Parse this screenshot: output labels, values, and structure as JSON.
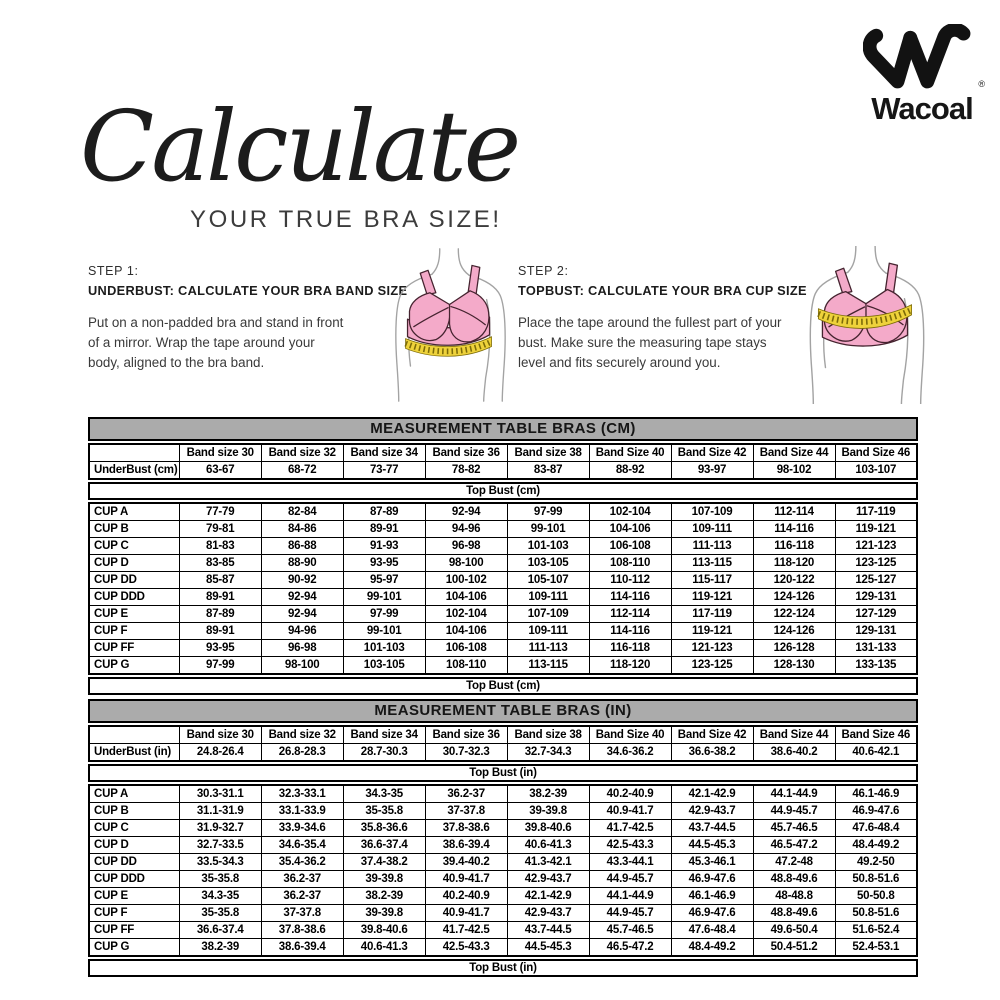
{
  "brand": {
    "wordmark": "Wacoal",
    "registered": "®"
  },
  "hero": {
    "script_title": "Calculate",
    "subtitle": "YOUR TRUE BRA SIZE!"
  },
  "steps": [
    {
      "label": "STEP 1:",
      "heading": "UNDERBUST: CALCULATE YOUR BRA BAND SIZE",
      "body": "Put on a non-padded bra and stand in front\nof a mirror. Wrap the tape around your\nbody, aligned to the bra band."
    },
    {
      "label": "STEP 2:",
      "heading": "TOPBUST: CALCULATE YOUR BRA CUP SIZE",
      "body": "Place the tape around the fullest part of your\nbust. Make sure the measuring tape stays\nlevel and fits securely around you."
    }
  ],
  "tables": [
    {
      "title": "MEASUREMENT TABLE BRAS (CM)",
      "columns": [
        "Band size 30",
        "Band size 32",
        "Band size 34",
        "Band size 36",
        "Band size 38",
        "Band Size 40",
        "Band Size 42",
        "Band Size 44",
        "Band Size 46"
      ],
      "underbust_label": "UnderBust (cm)",
      "underbust": [
        "63-67",
        "68-72",
        "73-77",
        "78-82",
        "83-87",
        "88-92",
        "93-97",
        "98-102",
        "103-107"
      ],
      "topbust_label": "Top Bust (cm)",
      "rows": [
        {
          "label": "CUP A",
          "values": [
            "77-79",
            "82-84",
            "87-89",
            "92-94",
            "97-99",
            "102-104",
            "107-109",
            "112-114",
            "117-119"
          ]
        },
        {
          "label": "CUP B",
          "values": [
            "79-81",
            "84-86",
            "89-91",
            "94-96",
            "99-101",
            "104-106",
            "109-111",
            "114-116",
            "119-121"
          ]
        },
        {
          "label": "CUP C",
          "values": [
            "81-83",
            "86-88",
            "91-93",
            "96-98",
            "101-103",
            "106-108",
            "111-113",
            "116-118",
            "121-123"
          ]
        },
        {
          "label": "CUP D",
          "values": [
            "83-85",
            "88-90",
            "93-95",
            "98-100",
            "103-105",
            "108-110",
            "113-115",
            "118-120",
            "123-125"
          ]
        },
        {
          "label": "CUP DD",
          "values": [
            "85-87",
            "90-92",
            "95-97",
            "100-102",
            "105-107",
            "110-112",
            "115-117",
            "120-122",
            "125-127"
          ]
        },
        {
          "label": "CUP DDD",
          "values": [
            "89-91",
            "92-94",
            "99-101",
            "104-106",
            "109-111",
            "114-116",
            "119-121",
            "124-126",
            "129-131"
          ]
        },
        {
          "label": "CUP E",
          "values": [
            "87-89",
            "92-94",
            "97-99",
            "102-104",
            "107-109",
            "112-114",
            "117-119",
            "122-124",
            "127-129"
          ]
        },
        {
          "label": "CUP F",
          "values": [
            "89-91",
            "94-96",
            "99-101",
            "104-106",
            "109-111",
            "114-116",
            "119-121",
            "124-126",
            "129-131"
          ]
        },
        {
          "label": "CUP FF",
          "values": [
            "93-95",
            "96-98",
            "101-103",
            "106-108",
            "111-113",
            "116-118",
            "121-123",
            "126-128",
            "131-133"
          ]
        },
        {
          "label": "CUP G",
          "values": [
            "97-99",
            "98-100",
            "103-105",
            "108-110",
            "113-115",
            "118-120",
            "123-125",
            "128-130",
            "133-135"
          ]
        }
      ],
      "footer_label": "Top Bust (cm)"
    },
    {
      "title": "MEASUREMENT TABLE BRAS (IN)",
      "columns": [
        "Band size 30",
        "Band size 32",
        "Band size 34",
        "Band size 36",
        "Band size 38",
        "Band Size 40",
        "Band Size 42",
        "Band Size 44",
        "Band Size 46"
      ],
      "underbust_label": "UnderBust (in)",
      "underbust": [
        "24.8-26.4",
        "26.8-28.3",
        "28.7-30.3",
        "30.7-32.3",
        "32.7-34.3",
        "34.6-36.2",
        "36.6-38.2",
        "38.6-40.2",
        "40.6-42.1"
      ],
      "topbust_label": "Top Bust (in)",
      "rows": [
        {
          "label": "CUP A",
          "values": [
            "30.3-31.1",
            "32.3-33.1",
            "34.3-35",
            "36.2-37",
            "38.2-39",
            "40.2-40.9",
            "42.1-42.9",
            "44.1-44.9",
            "46.1-46.9"
          ]
        },
        {
          "label": "CUP B",
          "values": [
            "31.1-31.9",
            "33.1-33.9",
            "35-35.8",
            "37-37.8",
            "39-39.8",
            "40.9-41.7",
            "42.9-43.7",
            "44.9-45.7",
            "46.9-47.6"
          ]
        },
        {
          "label": "CUP C",
          "values": [
            "31.9-32.7",
            "33.9-34.6",
            "35.8-36.6",
            "37.8-38.6",
            "39.8-40.6",
            "41.7-42.5",
            "43.7-44.5",
            "45.7-46.5",
            "47.6-48.4"
          ]
        },
        {
          "label": "CUP D",
          "values": [
            "32.7-33.5",
            "34.6-35.4",
            "36.6-37.4",
            "38.6-39.4",
            "40.6-41.3",
            "42.5-43.3",
            "44.5-45.3",
            "46.5-47.2",
            "48.4-49.2"
          ]
        },
        {
          "label": "CUP DD",
          "values": [
            "33.5-34.3",
            "35.4-36.2",
            "37.4-38.2",
            "39.4-40.2",
            "41.3-42.1",
            "43.3-44.1",
            "45.3-46.1",
            "47.2-48",
            "49.2-50"
          ]
        },
        {
          "label": "CUP DDD",
          "values": [
            "35-35.8",
            "36.2-37",
            "39-39.8",
            "40.9-41.7",
            "42.9-43.7",
            "44.9-45.7",
            "46.9-47.6",
            "48.8-49.6",
            "50.8-51.6"
          ]
        },
        {
          "label": "CUP E",
          "values": [
            "34.3-35",
            "36.2-37",
            "38.2-39",
            "40.2-40.9",
            "42.1-42.9",
            "44.1-44.9",
            "46.1-46.9",
            "48-48.8",
            "50-50.8"
          ]
        },
        {
          "label": "CUP F",
          "values": [
            "35-35.8",
            "37-37.8",
            "39-39.8",
            "40.9-41.7",
            "42.9-43.7",
            "44.9-45.7",
            "46.9-47.6",
            "48.8-49.6",
            "50.8-51.6"
          ]
        },
        {
          "label": "CUP FF",
          "values": [
            "36.6-37.4",
            "37.8-38.6",
            "39.8-40.6",
            "41.7-42.5",
            "43.7-44.5",
            "45.7-46.5",
            "47.6-48.4",
            "49.6-50.4",
            "51.6-52.4"
          ]
        },
        {
          "label": "CUP G",
          "values": [
            "38.2-39",
            "38.6-39.4",
            "40.6-41.3",
            "42.5-43.3",
            "44.5-45.3",
            "46.5-47.2",
            "48.4-49.2",
            "50.4-51.2",
            "52.4-53.1"
          ]
        }
      ],
      "footer_label": "Top Bust (in)"
    }
  ],
  "colors": {
    "bra_pink": "#f4aac9",
    "bra_outline": "#45232f",
    "tape_yellow": "#eed23b",
    "tape_tick": "#7c6b08",
    "skin_line": "#a3a3a3",
    "table_title_bg": "#ababab"
  }
}
